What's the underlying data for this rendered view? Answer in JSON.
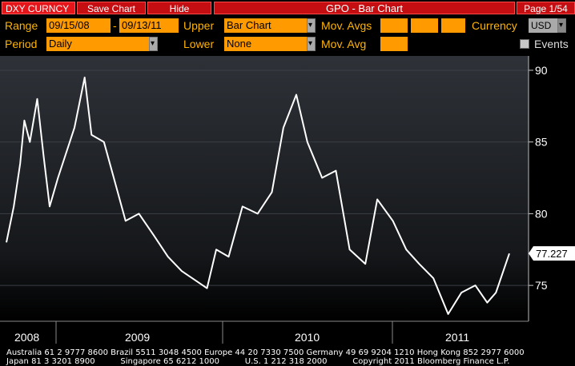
{
  "topbar": {
    "ticker": "DXY CURNCY",
    "save_chart": "Save Chart",
    "hide": "Hide",
    "title": "GPO - Bar Chart",
    "page": "Page 1/54"
  },
  "params": {
    "range_label": "Range",
    "range_start": "09/15/08",
    "range_sep": "-",
    "range_end": "09/13/11",
    "upper_label": "Upper",
    "upper_value": "Bar Chart",
    "mov_avgs_label": "Mov. Avgs",
    "currency_label": "Currency",
    "currency_value": "USD",
    "period_label": "Period",
    "period_value": "Daily",
    "lower_label": "Lower",
    "lower_value": "None",
    "mov_avg_label": "Mov. Avg",
    "events_label": "Events"
  },
  "chart_data": {
    "type": "line",
    "title": "",
    "y_ticks": [
      "90",
      "85",
      "80",
      "75"
    ],
    "ylim": [
      72.5,
      91
    ],
    "x_labels": [
      "2008",
      "2009",
      "2010",
      "2011"
    ],
    "last_value_label": "77.227",
    "line_color": "#ffffff",
    "x": [
      "2008-09-15",
      "2008-10-01",
      "2008-10-15",
      "2008-10-24",
      "2008-11-05",
      "2008-11-21",
      "2008-12-05",
      "2008-12-18",
      "2009-01-05",
      "2009-02-10",
      "2009-03-04",
      "2009-03-19",
      "2009-04-15",
      "2009-05-15",
      "2009-06-01",
      "2009-06-30",
      "2009-08-01",
      "2009-09-01",
      "2009-10-01",
      "2009-11-25",
      "2009-12-15",
      "2010-01-11",
      "2010-02-10",
      "2010-03-15",
      "2010-04-15",
      "2010-05-10",
      "2010-06-07",
      "2010-07-01",
      "2010-08-02",
      "2010-09-01",
      "2010-10-01",
      "2010-11-04",
      "2010-11-30",
      "2011-01-03",
      "2011-02-01",
      "2011-03-01",
      "2011-04-01",
      "2011-05-03",
      "2011-06-01",
      "2011-07-01",
      "2011-07-27",
      "2011-08-15",
      "2011-09-13"
    ],
    "values": [
      78.0,
      80.5,
      83.5,
      86.5,
      85.0,
      88.0,
      84.0,
      80.5,
      82.5,
      86.0,
      89.5,
      85.5,
      85.0,
      81.5,
      79.5,
      80.0,
      78.5,
      77.0,
      76.0,
      74.8,
      77.5,
      77.0,
      80.5,
      80.0,
      81.5,
      86.0,
      88.3,
      85.0,
      82.5,
      83.0,
      77.5,
      76.5,
      81.0,
      79.5,
      77.5,
      76.5,
      75.5,
      73.0,
      74.5,
      75.0,
      73.8,
      74.5,
      77.227
    ]
  },
  "footer": {
    "line1": "Australia 61 2 9777 8600 Brazil 5511 3048 4500 Europe 44 20 7330 7500 Germany 49 69 9204 1210 Hong Kong 852 2977 6000",
    "line2": "Japan 81 3 3201 8900          Singapore 65 6212 1000          U.S. 1 212 318 2000          Copyright 2011 Bloomberg Finance L.P."
  }
}
